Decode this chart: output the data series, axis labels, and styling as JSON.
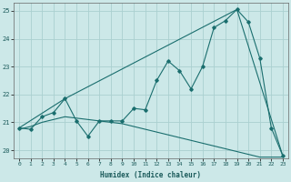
{
  "xlabel": "Humidex (Indice chaleur)",
  "ylabel": "",
  "background_color": "#cce8e8",
  "grid_color": "#aad0d0",
  "line_color": "#1a6e6e",
  "xlim": [
    -0.5,
    23.5
  ],
  "ylim": [
    19.7,
    25.3
  ],
  "yticks": [
    20,
    21,
    22,
    23,
    24,
    25
  ],
  "xticks": [
    0,
    1,
    2,
    3,
    4,
    5,
    6,
    7,
    8,
    9,
    10,
    11,
    12,
    13,
    14,
    15,
    16,
    17,
    18,
    19,
    20,
    21,
    22,
    23
  ],
  "line1_x": [
    0,
    1,
    2,
    3,
    4,
    5,
    6,
    7,
    8,
    9,
    10,
    11,
    12,
    13,
    14,
    15,
    16,
    17,
    18,
    19,
    20,
    21,
    22,
    23
  ],
  "line1_y": [
    20.8,
    20.75,
    21.2,
    21.35,
    21.85,
    21.05,
    20.5,
    21.05,
    21.05,
    21.05,
    21.5,
    21.45,
    22.5,
    23.2,
    22.85,
    22.2,
    23.0,
    24.4,
    24.65,
    25.05,
    24.6,
    23.3,
    20.8,
    19.8
  ],
  "line2_x": [
    0,
    4,
    19,
    23
  ],
  "line2_y": [
    20.8,
    21.85,
    25.05,
    19.8
  ],
  "line3_x": [
    0,
    1,
    2,
    3,
    4,
    5,
    6,
    7,
    8,
    9,
    10,
    11,
    12,
    13,
    14,
    15,
    16,
    17,
    18,
    19,
    20,
    21,
    22,
    23
  ],
  "line3_y": [
    20.75,
    20.85,
    21.0,
    21.1,
    21.2,
    21.15,
    21.1,
    21.05,
    21.0,
    20.95,
    20.85,
    20.75,
    20.65,
    20.55,
    20.45,
    20.35,
    20.25,
    20.15,
    20.05,
    19.95,
    19.85,
    19.75,
    19.75,
    19.75
  ],
  "figsize": [
    3.2,
    2.0
  ],
  "dpi": 100
}
